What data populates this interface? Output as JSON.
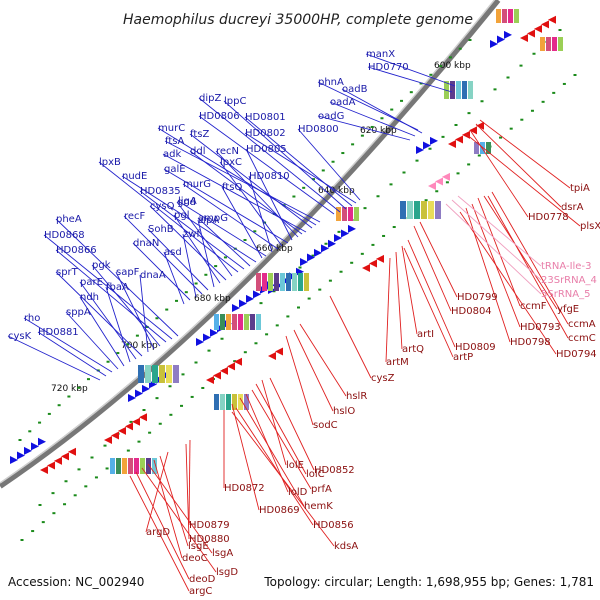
{
  "title": "Haemophilus ducreyi 35000HP, complete genome",
  "accession": "Accession: NC_002940",
  "summary": "Topology: circular; Length: 1,698,955 bp; Genes: 1,781",
  "colors": {
    "forward_strand": "#1010e0",
    "reverse_strand": "#e01010",
    "rna_genes": "#ff88bb",
    "backbone": "#888888",
    "tick": "#1a8a1a"
  },
  "ticks": [
    "600 kbp",
    "620 kbp",
    "640 kbp",
    "660 kbp",
    "680 kbp",
    "700 kbp",
    "720 kbp"
  ],
  "forward_genes": [
    "manX",
    "HD0770",
    "phnA",
    "oadB",
    "oadA",
    "oadG",
    "HD0800",
    "HD0802",
    "HD0801",
    "lppC",
    "dipZ",
    "HD0806",
    "ftsA",
    "murC",
    "ftsZ",
    "adk",
    "ddl",
    "recN",
    "HD0805",
    "galE",
    "lpxC",
    "murG",
    "HD0810",
    "ligA",
    "ftsQ",
    "nudE",
    "ampG",
    "HD0835",
    "lpxB",
    "gnd",
    "cysQ",
    "pgl",
    "zipA",
    "SohB",
    "recF",
    "zwf",
    "dnaN",
    "asd",
    "pheA",
    "HD0868",
    "HD0866",
    "pgk",
    "sapF",
    "dnaA",
    "sprT",
    "parE",
    "fbaA",
    "ndh",
    "sppA",
    "rho",
    "HD0881",
    "cysK"
  ],
  "reverse_genes": [
    "tpiA",
    "dsrA",
    "HD0778",
    "plsX",
    "HD0799",
    "HD0804",
    "ccmF",
    "yfgE",
    "HD0793",
    "ccmA",
    "ccmC",
    "HD0798",
    "HD0794",
    "artI",
    "HD0809",
    "artQ",
    "artP",
    "artM",
    "cysZ",
    "hslR",
    "hslO",
    "sodC",
    "lolE",
    "lolC",
    "HD0852",
    "prfA",
    "lolD",
    "hemK",
    "HD0872",
    "HD0869",
    "HD0856",
    "kdsA",
    "HD0879",
    "HD0880",
    "argD",
    "lsgE",
    "deoC",
    "lsgA",
    "lsgD",
    "deoD",
    "argC"
  ],
  "rna_genes": [
    "tRNA-Ile-3",
    "23SrRNA_4",
    "5SrRNA_5"
  ]
}
